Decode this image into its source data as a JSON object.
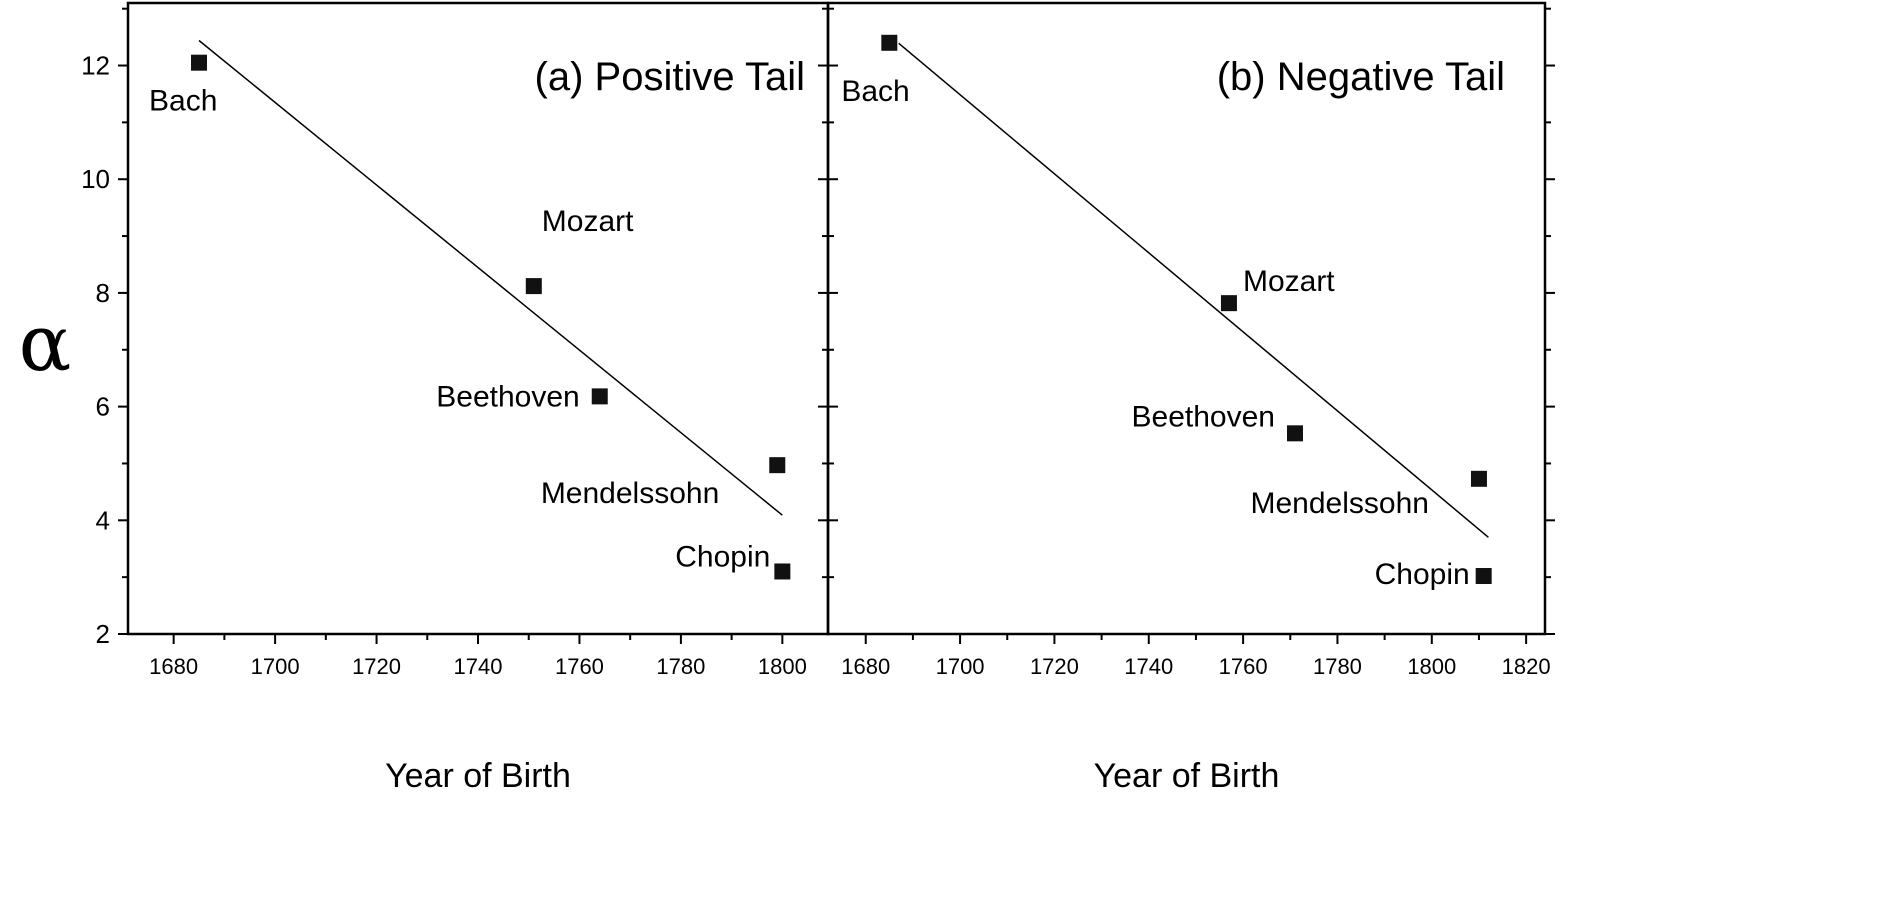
{
  "chart_data": [
    {
      "type": "scatter",
      "title": "(a) Positive Tail",
      "xlabel": "Year of Birth",
      "ylabel": "α",
      "xlim": [
        1671,
        1809
      ],
      "ylim": [
        2,
        13.1
      ],
      "xticks": [
        1680,
        1700,
        1720,
        1740,
        1760,
        1780,
        1800
      ],
      "yticks": [
        2,
        4,
        6,
        8,
        10,
        12
      ],
      "grid": false,
      "points": [
        {
          "label": "Bach",
          "x": 1685,
          "y": 12.05
        },
        {
          "label": "Mozart",
          "x": 1751,
          "y": 8.12
        },
        {
          "label": "Beethoven",
          "x": 1764,
          "y": 6.18
        },
        {
          "label": "Mendelssohn",
          "x": 1799,
          "y": 4.97
        },
        {
          "label": "Chopin",
          "x": 1800,
          "y": 3.1
        }
      ],
      "fit_line": [
        [
          1685,
          12.44
        ],
        [
          1800,
          4.09
        ]
      ]
    },
    {
      "type": "scatter",
      "title": "(b) Negative Tail",
      "xlabel": "Year of Birth",
      "ylabel": "",
      "xlim": [
        1672,
        1824
      ],
      "ylim": [
        2,
        13.1
      ],
      "xticks": [
        1680,
        1700,
        1720,
        1740,
        1760,
        1780,
        1800,
        1820
      ],
      "yticks": [
        2,
        4,
        6,
        8,
        10,
        12
      ],
      "grid": false,
      "points": [
        {
          "label": "Bach",
          "x": 1685,
          "y": 12.4
        },
        {
          "label": "Mozart",
          "x": 1757,
          "y": 7.82
        },
        {
          "label": "Beethoven",
          "x": 1771,
          "y": 5.53
        },
        {
          "label": "Mendelssohn",
          "x": 1810,
          "y": 4.73
        },
        {
          "label": "Chopin",
          "x": 1811,
          "y": 3.02
        }
      ],
      "fit_line": [
        [
          1687,
          12.39
        ],
        [
          1812,
          3.7
        ]
      ]
    }
  ]
}
